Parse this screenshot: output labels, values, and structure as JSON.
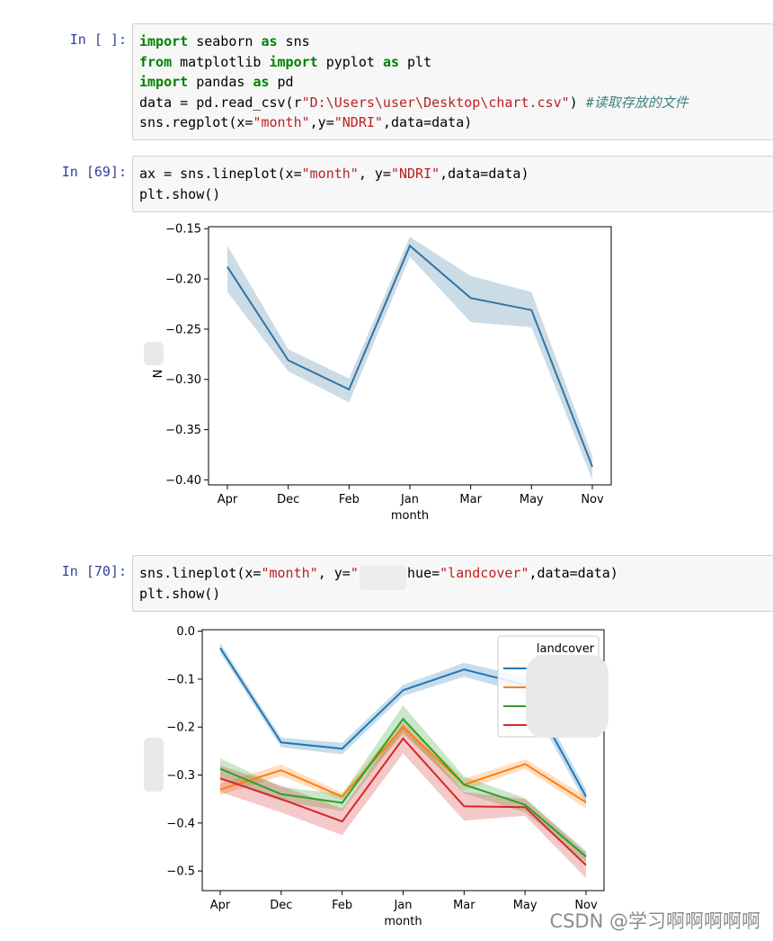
{
  "cells": [
    {
      "prompt": "In [ ]:",
      "lines": [
        [
          {
            "t": "import",
            "c": "kw"
          },
          {
            "t": " seaborn ",
            "c": "pn"
          },
          {
            "t": "as",
            "c": "kw"
          },
          {
            "t": " sns",
            "c": "pn"
          }
        ],
        [
          {
            "t": "from",
            "c": "kw"
          },
          {
            "t": " matplotlib ",
            "c": "pn"
          },
          {
            "t": "import",
            "c": "kw"
          },
          {
            "t": " pyplot ",
            "c": "pn"
          },
          {
            "t": "as",
            "c": "kw"
          },
          {
            "t": " plt",
            "c": "pn"
          }
        ],
        [
          {
            "t": "import",
            "c": "kw"
          },
          {
            "t": " pandas ",
            "c": "pn"
          },
          {
            "t": "as",
            "c": "kw"
          },
          {
            "t": " pd",
            "c": "pn"
          }
        ],
        [
          {
            "t": "data = pd.read_csv(r",
            "c": "pn"
          },
          {
            "t": "\"D:\\Users\\user\\Desktop\\chart.csv\"",
            "c": "str"
          },
          {
            "t": ") ",
            "c": "pn"
          },
          {
            "t": "#读取存放的文件",
            "c": "cm"
          }
        ],
        [
          {
            "t": "sns.regplot(x=",
            "c": "pn"
          },
          {
            "t": "\"month\"",
            "c": "str"
          },
          {
            "t": ",y=",
            "c": "pn"
          },
          {
            "t": "\"NDRI\"",
            "c": "str"
          },
          {
            "t": ",data=data)",
            "c": "pn"
          }
        ]
      ]
    },
    {
      "prompt": "In [69]:",
      "lines": [
        [
          {
            "t": "ax = sns.lineplot(x=",
            "c": "pn"
          },
          {
            "t": "\"month\"",
            "c": "str"
          },
          {
            "t": ", y=",
            "c": "pn"
          },
          {
            "t": "\"NDRI\"",
            "c": "str"
          },
          {
            "t": ",data=data)",
            "c": "pn"
          }
        ],
        [
          {
            "t": "plt.show()",
            "c": "pn"
          }
        ]
      ]
    },
    {
      "prompt": "In [70]:",
      "lines": [
        [
          {
            "t": "sns.lineplot(x=",
            "c": "pn"
          },
          {
            "t": "\"month\"",
            "c": "str"
          },
          {
            "t": ", y=",
            "c": "pn"
          },
          {
            "t": "\"   \"",
            "c": "str"
          },
          {
            "t": ", hue=",
            "c": "pn"
          },
          {
            "t": "\"landcover\"",
            "c": "str"
          },
          {
            "t": ",data=data)",
            "c": "pn"
          }
        ],
        [
          {
            "t": "plt.show()",
            "c": "pn"
          }
        ]
      ]
    }
  ],
  "chart_data": [
    {
      "type": "line",
      "xlabel": "month",
      "ylabel": "N",
      "categories": [
        "Apr",
        "Dec",
        "Feb",
        "Jan",
        "Mar",
        "May",
        "Nov"
      ],
      "yticks": [
        "−0.15",
        "−0.20",
        "−0.25",
        "−0.30",
        "−0.35",
        "−0.40"
      ],
      "ylim": [
        -0.405,
        -0.148
      ],
      "series": [
        {
          "values": [
            -0.188,
            -0.281,
            -0.31,
            -0.167,
            -0.219,
            -0.231,
            -0.387
          ],
          "lower": [
            -0.213,
            -0.292,
            -0.323,
            -0.178,
            -0.243,
            -0.248,
            -0.4
          ],
          "upper": [
            -0.167,
            -0.27,
            -0.299,
            -0.158,
            -0.197,
            -0.213,
            -0.376
          ],
          "color": "#3274a1"
        }
      ]
    },
    {
      "type": "line",
      "xlabel": "month",
      "categories": [
        "Apr",
        "Dec",
        "Feb",
        "Jan",
        "Mar",
        "May",
        "Nov"
      ],
      "yticks": [
        "0.0",
        "−0.1",
        "−0.2",
        "−0.3",
        "−0.4",
        "−0.5"
      ],
      "ylim": [
        -0.541,
        0.003
      ],
      "legend_title": "landcover",
      "legend_position": "top-right",
      "series": [
        {
          "values": [
            -0.035,
            -0.232,
            -0.245,
            -0.123,
            -0.08,
            -0.112,
            -0.345
          ],
          "lower": [
            -0.045,
            -0.242,
            -0.257,
            -0.135,
            -0.095,
            -0.13,
            -0.36
          ],
          "upper": [
            -0.025,
            -0.222,
            -0.233,
            -0.112,
            -0.066,
            -0.095,
            -0.33
          ],
          "color": "#1f77b4"
        },
        {
          "values": [
            -0.33,
            -0.29,
            -0.345,
            -0.2,
            -0.32,
            -0.277,
            -0.357
          ],
          "lower": [
            -0.342,
            -0.302,
            -0.353,
            -0.215,
            -0.332,
            -0.287,
            -0.37
          ],
          "upper": [
            -0.318,
            -0.278,
            -0.337,
            -0.186,
            -0.308,
            -0.267,
            -0.345
          ],
          "color": "#ff7f0e"
        },
        {
          "values": [
            -0.287,
            -0.34,
            -0.358,
            -0.183,
            -0.32,
            -0.362,
            -0.47
          ],
          "lower": [
            -0.307,
            -0.355,
            -0.375,
            -0.21,
            -0.338,
            -0.378,
            -0.482
          ],
          "upper": [
            -0.265,
            -0.325,
            -0.34,
            -0.155,
            -0.303,
            -0.348,
            -0.458
          ],
          "color": "#2ca02c"
        },
        {
          "values": [
            -0.307,
            -0.35,
            -0.397,
            -0.224,
            -0.365,
            -0.367,
            -0.488
          ],
          "lower": [
            -0.335,
            -0.378,
            -0.425,
            -0.255,
            -0.395,
            -0.385,
            -0.515
          ],
          "upper": [
            -0.28,
            -0.322,
            -0.37,
            -0.193,
            -0.335,
            -0.35,
            -0.462
          ],
          "color": "#d62728"
        }
      ]
    }
  ],
  "watermark": "CSDN @学习啊啊啊啊啊"
}
